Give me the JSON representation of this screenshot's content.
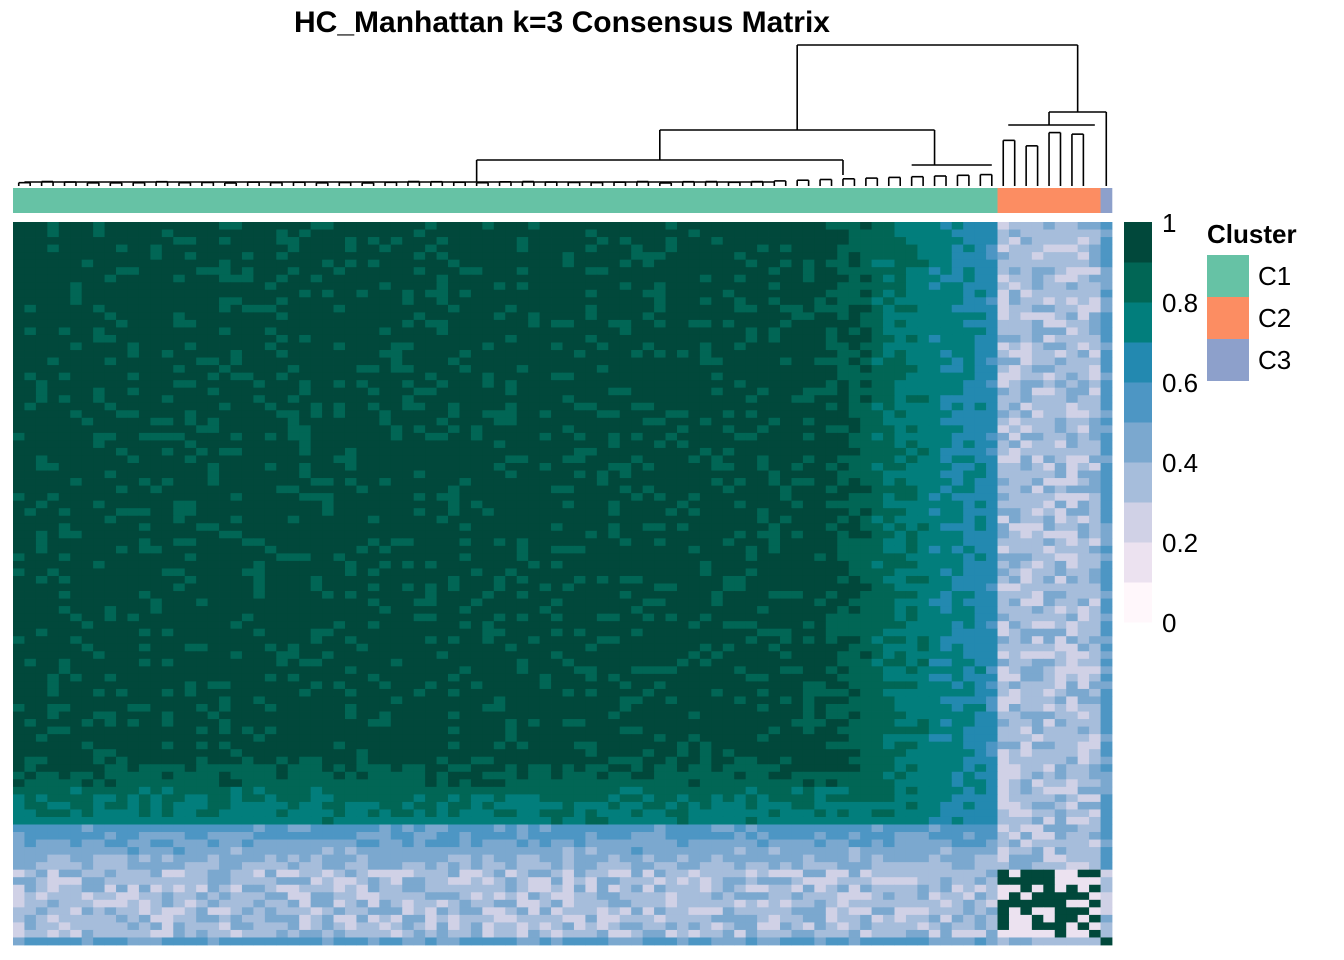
{
  "chart_data": {
    "type": "heatmap",
    "title": "HC_Manhattan k=3 Consensus Matrix",
    "n_samples": 96,
    "cluster_sizes": {
      "C1": 86,
      "C2": 9,
      "C3": 1
    },
    "colorbar": {
      "ticks": [
        "1",
        "0.8",
        "0.6",
        "0.4",
        "0.2",
        "0"
      ],
      "range": [
        0,
        1
      ],
      "colors": [
        "#FFF7FB",
        "#ECE2F0",
        "#D0D1E6",
        "#A6BDDB",
        "#7BA8CF",
        "#4D96C4",
        "#2389B0",
        "#027E7C",
        "#016655",
        "#01483B"
      ]
    },
    "legend": {
      "title": "Cluster",
      "entries": [
        {
          "label": "C1",
          "color": "#66C2A5"
        },
        {
          "label": "C2",
          "color": "#FC8D62"
        },
        {
          "label": "C3",
          "color": "#8DA0CB"
        }
      ]
    },
    "heatmap_pattern": {
      "c1_core_consensus": 1.0,
      "c1_to_c2_consensus": 0.35,
      "c1_to_c3_consensus": 0.5,
      "c2_core_consensus": 0.9,
      "c3_core_consensus": 1.0
    }
  }
}
